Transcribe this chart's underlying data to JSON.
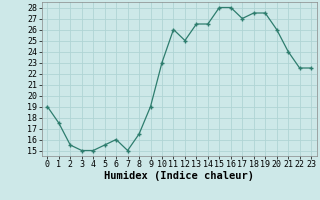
{
  "x": [
    0,
    1,
    2,
    3,
    4,
    5,
    6,
    7,
    8,
    9,
    10,
    11,
    12,
    13,
    14,
    15,
    16,
    17,
    18,
    19,
    20,
    21,
    22,
    23
  ],
  "y": [
    19,
    17.5,
    15.5,
    15,
    15,
    15.5,
    16,
    15,
    16.5,
    19,
    23,
    26,
    25,
    26.5,
    26.5,
    28,
    28,
    27,
    27.5,
    27.5,
    26,
    24,
    22.5,
    22.5
  ],
  "line_color": "#2e7d6e",
  "marker_color": "#2e7d6e",
  "bg_color": "#cde8e8",
  "grid_color": "#b0d4d4",
  "xlabel": "Humidex (Indice chaleur)",
  "xlim": [
    -0.5,
    23.5
  ],
  "ylim": [
    14.5,
    28.5
  ],
  "yticks": [
    15,
    16,
    17,
    18,
    19,
    20,
    21,
    22,
    23,
    24,
    25,
    26,
    27,
    28
  ],
  "xticks": [
    0,
    1,
    2,
    3,
    4,
    5,
    6,
    7,
    8,
    9,
    10,
    11,
    12,
    13,
    14,
    15,
    16,
    17,
    18,
    19,
    20,
    21,
    22,
    23
  ],
  "xlabel_fontsize": 7.5,
  "tick_fontsize": 6
}
